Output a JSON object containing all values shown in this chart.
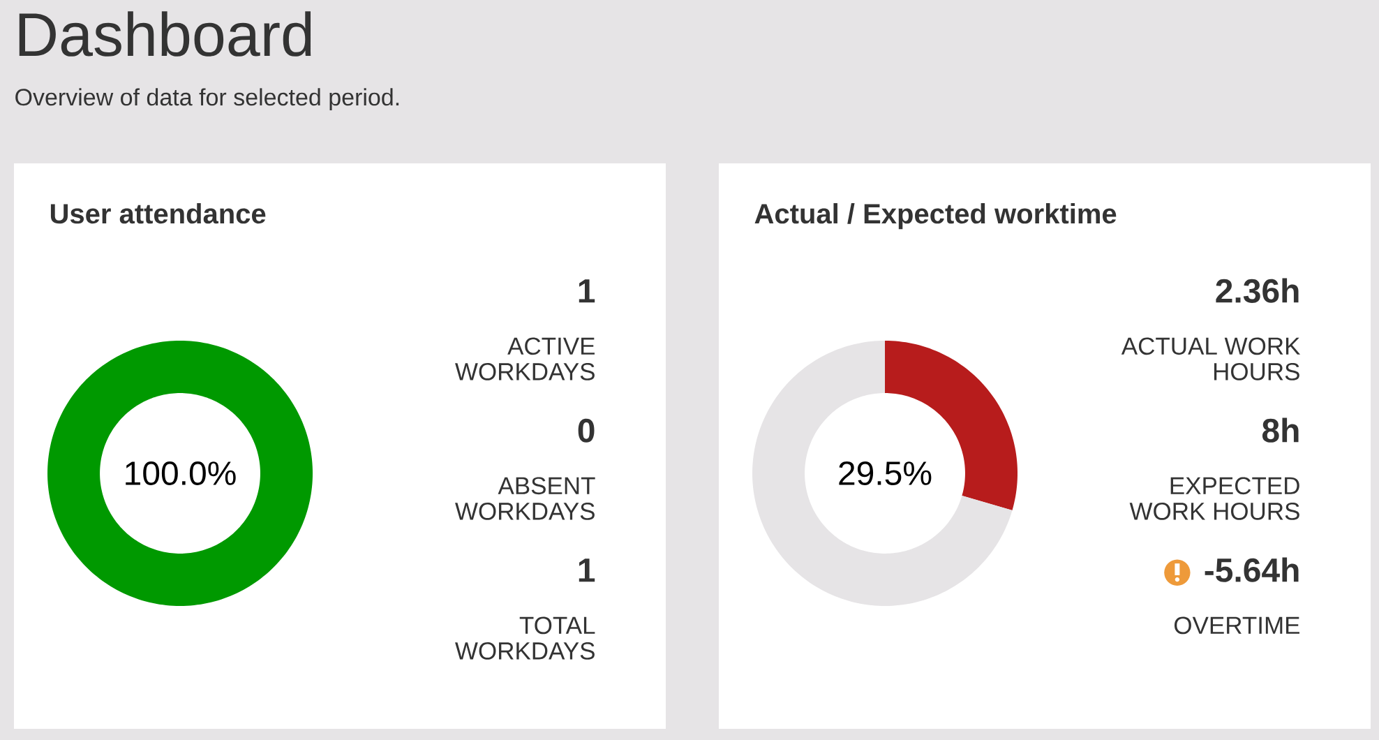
{
  "chart_data": [
    {
      "type": "other",
      "title": "Dashboard",
      "subtitle": "Overview of data for selected period."
    },
    {
      "type": "donut",
      "title": "User attendance",
      "categories": [
        null
      ],
      "values": [
        100
      ],
      "colors": [
        "#009900"
      ],
      "annotations": [
        "100.0%",
        "1",
        "ACTIVE WORKDAYS",
        "0",
        "ABSENT WORKDAYS",
        "1",
        "TOTAL WORKDAYS"
      ]
    },
    {
      "type": "donut",
      "title": "Actual / Expected worktime",
      "categories": [
        null,
        null
      ],
      "values": [
        29.5,
        70.5
      ],
      "colors": [
        "#b71c1c",
        "#e6e4e6"
      ],
      "annotations": [
        "29.5%",
        "2.36h",
        "ACTUAL WORK HOURS",
        "8h",
        "EXPECTED WORK HOURS",
        "-5.64h",
        "OVERTIME"
      ]
    }
  ]
}
